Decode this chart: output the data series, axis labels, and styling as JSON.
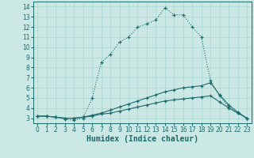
{
  "xlabel": "Humidex (Indice chaleur)",
  "bg_color": "#cce8e5",
  "line_color": "#1a6b6b",
  "grid_color": "#a8d4d0",
  "xlim": [
    -0.5,
    23.5
  ],
  "ylim": [
    2.5,
    14.5
  ],
  "xticks": [
    0,
    1,
    2,
    3,
    4,
    5,
    6,
    7,
    8,
    9,
    10,
    11,
    12,
    13,
    14,
    15,
    16,
    17,
    18,
    19,
    20,
    21,
    22,
    23
  ],
  "yticks": [
    3,
    4,
    5,
    6,
    7,
    8,
    9,
    10,
    11,
    12,
    13,
    14
  ],
  "line1_x": [
    0,
    1,
    2,
    3,
    4,
    5,
    6,
    7,
    8,
    9,
    10,
    11,
    12,
    13,
    14,
    15,
    16,
    17,
    18,
    19,
    20,
    21,
    22,
    23
  ],
  "line1_y": [
    3.2,
    3.2,
    3.1,
    2.9,
    2.8,
    3.0,
    5.0,
    8.5,
    9.3,
    10.5,
    11.0,
    12.0,
    12.3,
    12.7,
    13.9,
    13.2,
    13.2,
    12.0,
    11.0,
    6.7,
    5.2,
    4.1,
    3.5,
    3.0
  ],
  "line2_x": [
    0,
    1,
    2,
    3,
    4,
    5,
    6,
    7,
    8,
    9,
    10,
    11,
    12,
    13,
    14,
    15,
    16,
    17,
    18,
    19,
    20,
    21,
    22,
    23
  ],
  "line2_y": [
    3.2,
    3.2,
    3.1,
    3.0,
    3.0,
    3.1,
    3.3,
    3.5,
    3.8,
    4.1,
    4.4,
    4.7,
    5.0,
    5.3,
    5.6,
    5.8,
    6.0,
    6.1,
    6.2,
    6.5,
    5.3,
    4.3,
    3.6,
    3.0
  ],
  "line3_x": [
    0,
    1,
    2,
    3,
    4,
    5,
    6,
    7,
    8,
    9,
    10,
    11,
    12,
    13,
    14,
    15,
    16,
    17,
    18,
    19,
    20,
    21,
    22,
    23
  ],
  "line3_y": [
    3.2,
    3.2,
    3.1,
    3.0,
    3.0,
    3.1,
    3.2,
    3.4,
    3.5,
    3.7,
    3.9,
    4.1,
    4.3,
    4.5,
    4.7,
    4.8,
    4.9,
    5.0,
    5.1,
    5.2,
    4.6,
    4.0,
    3.5,
    3.0
  ],
  "label_fontsize": 7,
  "tick_fontsize": 5.5
}
